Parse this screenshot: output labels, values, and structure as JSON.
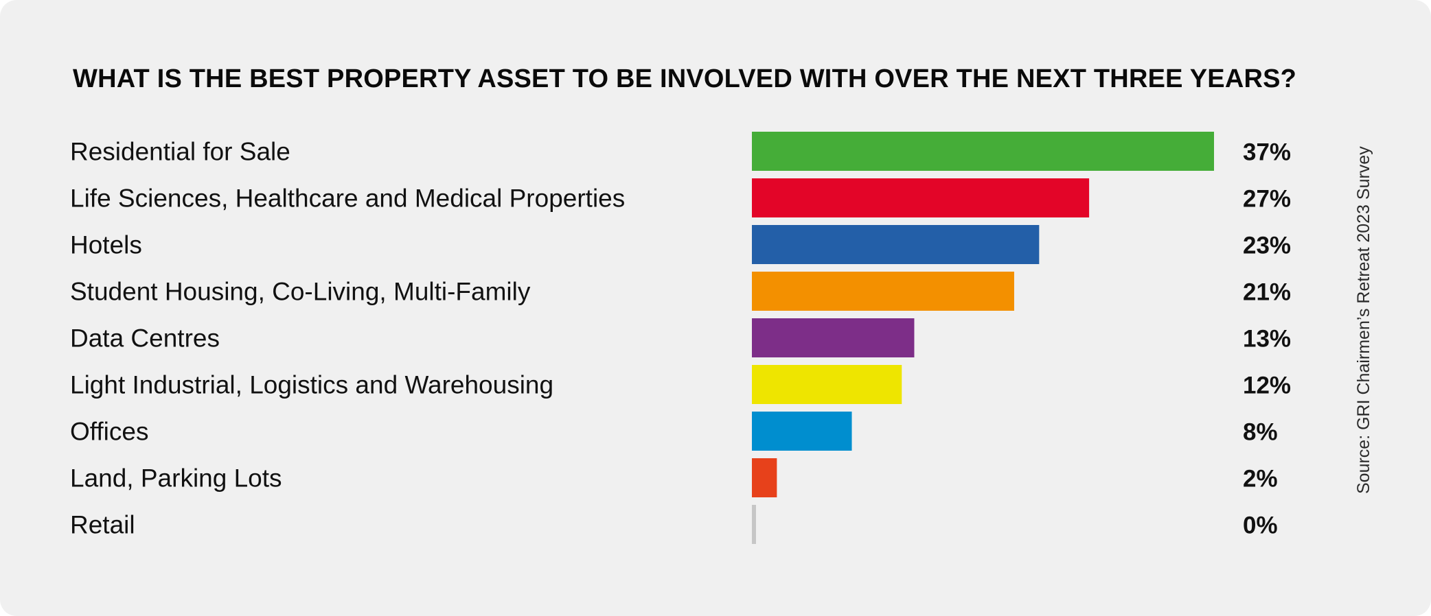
{
  "chart_data": {
    "type": "bar",
    "orientation": "horizontal",
    "title": "WHAT IS THE BEST PROPERTY ASSET TO BE INVOLVED WITH OVER THE NEXT THREE YEARS?",
    "source": "Source: GRI Chairmen’s Retreat 2023 Survey",
    "value_suffix": "%",
    "xlim": [
      0,
      37
    ],
    "grid": false,
    "categories": [
      "Residential for Sale",
      "Life Sciences, Healthcare and Medical Properties",
      "Hotels",
      "Student Housing, Co-Living, Multi-Family",
      "Data Centres",
      "Light Industrial, Logistics and Warehousing",
      "Offices",
      "Land, Parking Lots",
      "Retail"
    ],
    "values": [
      37,
      27,
      23,
      21,
      13,
      12,
      8,
      2,
      0
    ],
    "labels": [
      "37%",
      "27%",
      "23%",
      "21%",
      "13%",
      "12%",
      "8%",
      "2%",
      "0%"
    ],
    "colors": [
      "#45ad38",
      "#e30528",
      "#235fa8",
      "#f39000",
      "#7d2e88",
      "#eee500",
      "#008ecf",
      "#e7411b",
      "#c6c6c6"
    ]
  }
}
